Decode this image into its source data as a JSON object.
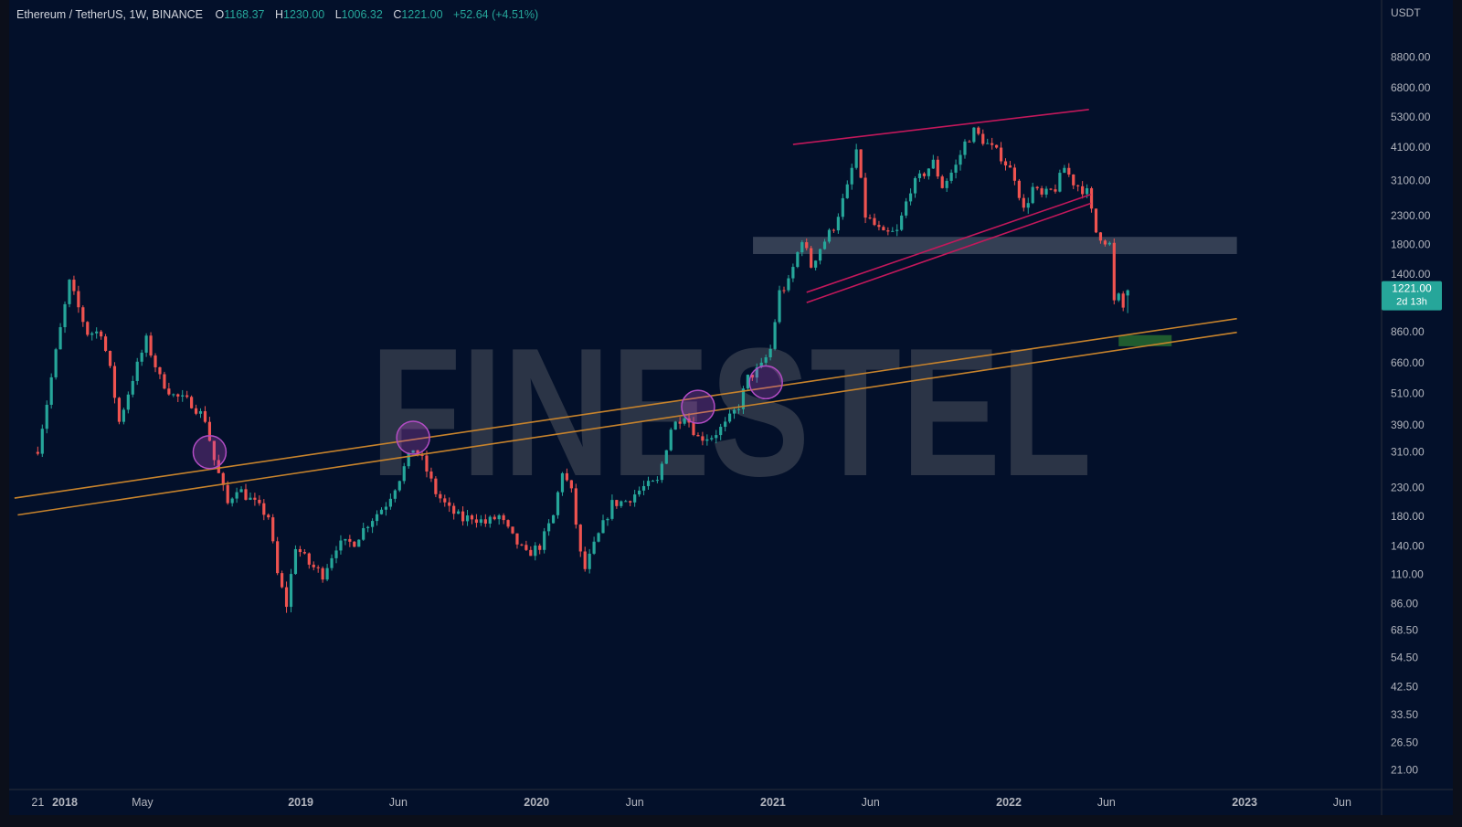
{
  "header": {
    "symbol": "Ethereum / TetherUS, 1W, BINANCE",
    "o_label": "O",
    "o_value": "1168.37",
    "h_label": "H",
    "h_value": "1230.00",
    "l_label": "L",
    "l_value": "1006.32",
    "c_label": "C",
    "c_value": "1221.00",
    "change": "+52.64 (+4.51%)"
  },
  "price_tag": {
    "price": "1221.00",
    "countdown": "2d 13h"
  },
  "watermark": "FINESTEL",
  "colors": {
    "background": "#03102a",
    "up": "#26a69a",
    "down": "#ef5350",
    "axis_text": "#b2b5be",
    "channel_support": "#c7832c",
    "wedge_lines": "#c2185b",
    "circles": "#b24cc4",
    "resistance_zone": "#5d6677",
    "target_zone": "#2e7d32",
    "watermark": "#2b3446"
  },
  "chart_data": {
    "type": "candlestick",
    "symbol": "ETHUSDT",
    "interval": "1W",
    "y_scale": "log",
    "y_unit": "USDT",
    "y_ticks": [
      21,
      26.5,
      33.5,
      42.5,
      54.5,
      68.5,
      86,
      110,
      140,
      180,
      230,
      310,
      390,
      510,
      660,
      860,
      1400,
      1800,
      2300,
      3100,
      4100,
      5300,
      6800,
      8800
    ],
    "y_tick_labels": [
      "21.00",
      "26.50",
      "33.50",
      "42.50",
      "54.50",
      "68.50",
      "86.00",
      "110.00",
      "140.00",
      "180.00",
      "230.00",
      "310.00",
      "390.00",
      "510.00",
      "660.00",
      "860.00",
      "1400.00",
      "1800.00",
      "2300.00",
      "3100.00",
      "4100.00",
      "5300.00",
      "6800.00",
      "8800.00"
    ],
    "x_ticks": [
      {
        "date": "2017-11-20",
        "label": "21",
        "bold": false
      },
      {
        "date": "2018-01-01",
        "label": "2018",
        "bold": true
      },
      {
        "date": "2018-05-01",
        "label": "May",
        "bold": false
      },
      {
        "date": "2019-01-01",
        "label": "2019",
        "bold": true
      },
      {
        "date": "2019-06-01",
        "label": "Jun",
        "bold": false
      },
      {
        "date": "2020-01-01",
        "label": "2020",
        "bold": true
      },
      {
        "date": "2020-06-01",
        "label": "Jun",
        "bold": false
      },
      {
        "date": "2021-01-01",
        "label": "2021",
        "bold": true
      },
      {
        "date": "2021-06-01",
        "label": "Jun",
        "bold": false
      },
      {
        "date": "2022-01-01",
        "label": "2022",
        "bold": true
      },
      {
        "date": "2022-06-01",
        "label": "Jun",
        "bold": false
      },
      {
        "date": "2023-01-01",
        "label": "2023",
        "bold": true
      },
      {
        "date": "2023-06-01",
        "label": "Jun",
        "bold": false
      }
    ],
    "x_range": [
      "2017-10-18",
      "2023-07-15"
    ],
    "y_range": [
      19.5,
      11500
    ],
    "price_path": [
      [
        "2017-11-20",
        320
      ],
      [
        "2017-12-04",
        470
      ],
      [
        "2017-12-18",
        720
      ],
      [
        "2018-01-08",
        1300
      ],
      [
        "2018-01-22",
        1050
      ],
      [
        "2018-02-05",
        850
      ],
      [
        "2018-02-26",
        860
      ],
      [
        "2018-03-12",
        620
      ],
      [
        "2018-03-26",
        400
      ],
      [
        "2018-04-16",
        580
      ],
      [
        "2018-05-07",
        800
      ],
      [
        "2018-05-28",
        580
      ],
      [
        "2018-06-18",
        500
      ],
      [
        "2018-07-16",
        470
      ],
      [
        "2018-08-06",
        410
      ],
      [
        "2018-08-20",
        290
      ],
      [
        "2018-09-10",
        200
      ],
      [
        "2018-09-24",
        230
      ],
      [
        "2018-10-22",
        200
      ],
      [
        "2018-11-12",
        180
      ],
      [
        "2018-11-26",
        110
      ],
      [
        "2018-12-10",
        85
      ],
      [
        "2018-12-24",
        140
      ],
      [
        "2019-01-14",
        120
      ],
      [
        "2019-02-04",
        110
      ],
      [
        "2019-02-25",
        140
      ],
      [
        "2019-03-25",
        145
      ],
      [
        "2019-04-15",
        170
      ],
      [
        "2019-05-13",
        200
      ],
      [
        "2019-06-03",
        250
      ],
      [
        "2019-06-24",
        320
      ],
      [
        "2019-07-08",
        290
      ],
      [
        "2019-07-29",
        220
      ],
      [
        "2019-08-19",
        190
      ],
      [
        "2019-09-09",
        175
      ],
      [
        "2019-09-23",
        180
      ],
      [
        "2019-10-14",
        170
      ],
      [
        "2019-11-04",
        180
      ],
      [
        "2019-11-25",
        150
      ],
      [
        "2019-12-16",
        130
      ],
      [
        "2020-01-06",
        140
      ],
      [
        "2020-01-27",
        180
      ],
      [
        "2020-02-10",
        265
      ],
      [
        "2020-02-24",
        220
      ],
      [
        "2020-03-09",
        130
      ],
      [
        "2020-03-16",
        115
      ],
      [
        "2020-03-30",
        140
      ],
      [
        "2020-04-27",
        200
      ],
      [
        "2020-05-18",
        205
      ],
      [
        "2020-06-15",
        230
      ],
      [
        "2020-07-06",
        240
      ],
      [
        "2020-07-27",
        380
      ],
      [
        "2020-08-17",
        430
      ],
      [
        "2020-09-07",
        350
      ],
      [
        "2020-09-28",
        355
      ],
      [
        "2020-10-19",
        390
      ],
      [
        "2020-11-09",
        460
      ],
      [
        "2020-11-23",
        580
      ],
      [
        "2020-12-14",
        640
      ],
      [
        "2020-12-28",
        740
      ],
      [
        "2021-01-11",
        1200
      ],
      [
        "2021-01-25",
        1300
      ],
      [
        "2021-02-15",
        1900
      ],
      [
        "2021-03-01",
        1500
      ],
      [
        "2021-03-15",
        1750
      ],
      [
        "2021-04-05",
        2100
      ],
      [
        "2021-04-26",
        2900
      ],
      [
        "2021-05-10",
        4000
      ],
      [
        "2021-05-24",
        2300
      ],
      [
        "2021-06-21",
        1950
      ],
      [
        "2021-07-12",
        2000
      ],
      [
        "2021-08-02",
        2900
      ],
      [
        "2021-08-23",
        3300
      ],
      [
        "2021-09-06",
        3600
      ],
      [
        "2021-09-20",
        2950
      ],
      [
        "2021-10-11",
        3500
      ],
      [
        "2021-10-25",
        4250
      ],
      [
        "2021-11-08",
        4700
      ],
      [
        "2021-11-29",
        4200
      ],
      [
        "2021-12-20",
        3800
      ],
      [
        "2022-01-10",
        3200
      ],
      [
        "2022-01-24",
        2400
      ],
      [
        "2022-02-07",
        2900
      ],
      [
        "2022-02-21",
        2700
      ],
      [
        "2022-03-14",
        2900
      ],
      [
        "2022-03-28",
        3450
      ],
      [
        "2022-04-11",
        3050
      ],
      [
        "2022-05-02",
        2800
      ],
      [
        "2022-05-16",
        2000
      ],
      [
        "2022-06-06",
        1800
      ],
      [
        "2022-06-13",
        1100
      ],
      [
        "2022-06-20",
        1150
      ],
      [
        "2022-06-27",
        1050
      ],
      [
        "2022-07-04",
        1221
      ]
    ],
    "last_candle": {
      "open": 1168.37,
      "high": 1230.0,
      "low": 1006.32,
      "close": 1221.0
    },
    "annotations": [
      {
        "type": "trendline",
        "role": "support-channel-upper",
        "from": [
          "2017-10-15",
          210
        ],
        "to": [
          "2022-12-20",
          960
        ]
      },
      {
        "type": "trendline",
        "role": "support-channel-lower",
        "from": [
          "2017-10-20",
          182
        ],
        "to": [
          "2022-12-20",
          855
        ]
      },
      {
        "type": "trendline",
        "role": "top-resistance",
        "from": [
          "2021-02-01",
          4200
        ],
        "to": [
          "2022-05-05",
          5650
        ]
      },
      {
        "type": "trendline",
        "role": "wedge-upper",
        "from": [
          "2021-02-22",
          1200
        ],
        "to": [
          "2022-05-08",
          2750
        ]
      },
      {
        "type": "trendline",
        "role": "wedge-lower",
        "from": [
          "2021-02-22",
          1100
        ],
        "to": [
          "2022-05-08",
          2550
        ]
      },
      {
        "type": "zone",
        "role": "resistance",
        "x": [
          "2020-12-01",
          "2022-12-20"
        ],
        "y": [
          1660,
          1920
        ]
      },
      {
        "type": "zone",
        "role": "target",
        "x": [
          "2022-06-20",
          "2022-09-10"
        ],
        "y": [
          760,
          835
        ]
      },
      {
        "type": "circle",
        "at": [
          "2018-08-13",
          310
        ]
      },
      {
        "type": "circle",
        "at": [
          "2019-06-24",
          350
        ]
      },
      {
        "type": "circle",
        "at": [
          "2020-09-07",
          455
        ]
      },
      {
        "type": "circle",
        "at": [
          "2020-12-21",
          560
        ]
      }
    ]
  }
}
